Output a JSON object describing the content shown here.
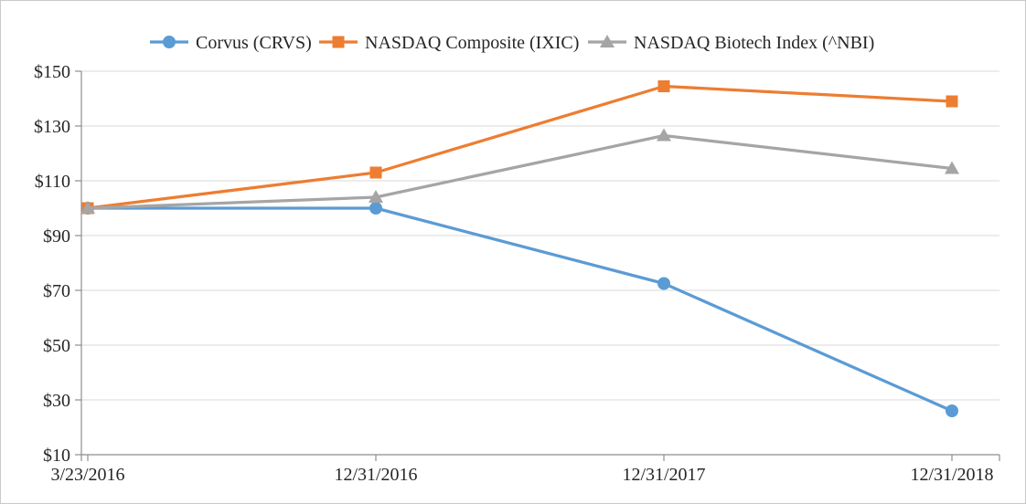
{
  "chart_data": {
    "type": "line",
    "title": "",
    "categories": [
      "3/23/2016",
      "12/31/2016",
      "12/31/2017",
      "12/31/2018"
    ],
    "series": [
      {
        "name": "Corvus (CRVS)",
        "marker": "circle",
        "color": "#5B9BD5",
        "values": [
          100,
          100,
          72.5,
          26
        ]
      },
      {
        "name": "NASDAQ Composite (IXIC)",
        "marker": "square",
        "color": "#ED7D31",
        "values": [
          100,
          113,
          144.5,
          139
        ]
      },
      {
        "name": "NASDAQ Biotech Index (^NBI)",
        "marker": "triangle",
        "color": "#A5A5A5",
        "values": [
          100,
          104,
          126.5,
          114.5
        ]
      }
    ],
    "y_axis": {
      "min": 10,
      "max": 150,
      "step": 20,
      "tick_prefix": "$",
      "tick_labels": [
        "$10",
        "$30",
        "$50",
        "$70",
        "$90",
        "$110",
        "$130",
        "$150"
      ]
    },
    "xlabel": "",
    "ylabel": "",
    "grid": true,
    "legend_position": "top",
    "colors": {
      "gridline": "#D9D9D9",
      "axis": "#8E8E8E",
      "text": "#262626",
      "background": "#FFFFFF",
      "border": "#C9C9C9"
    }
  }
}
